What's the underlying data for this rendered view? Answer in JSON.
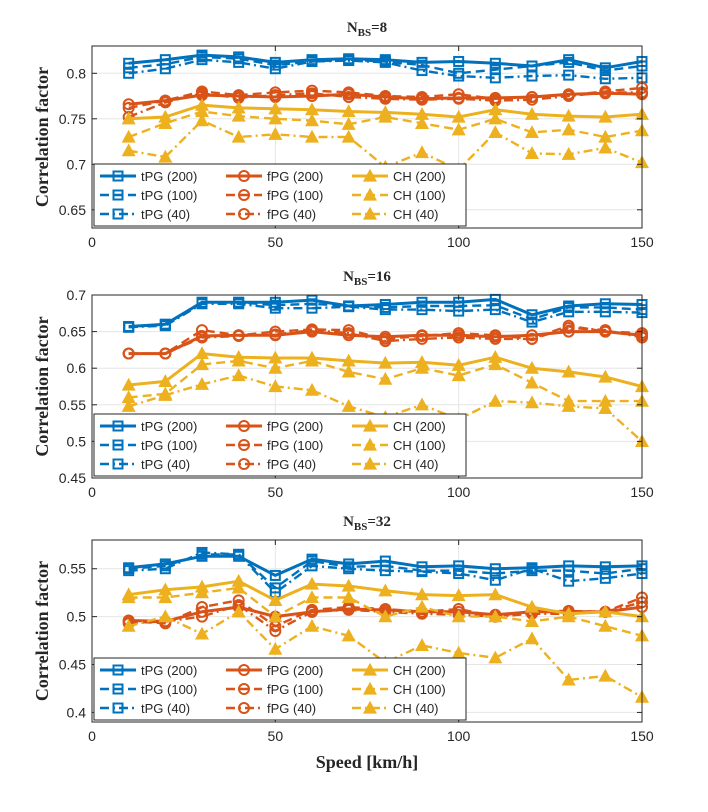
{
  "figure": {
    "xlabel": "Speed [km/h]"
  },
  "colors": {
    "tPG": "#0072BD",
    "fPG": "#D95319",
    "CH": "#EDB120",
    "grid": "#e6e6e6",
    "axis": "#262626"
  },
  "chart_data": [
    {
      "type": "line",
      "title_main": "N",
      "title_sub": "BS",
      "title_suffix": "=8",
      "ylabel": "Correlation factor",
      "xlim": [
        0,
        150
      ],
      "ylim": [
        0.63,
        0.83
      ],
      "xticks": [
        "0",
        "50",
        "100",
        "150"
      ],
      "yticks": [
        "0.65",
        "0.7",
        "0.75",
        "0.8"
      ],
      "ytick_values": [
        0.65,
        0.7,
        0.75,
        0.8
      ],
      "grid": true,
      "legend_position": "bottom-left",
      "x": [
        10,
        20,
        30,
        40,
        50,
        60,
        70,
        80,
        90,
        100,
        110,
        120,
        130,
        140,
        150
      ],
      "series": [
        {
          "name": "tPG (200)",
          "color_key": "tPG",
          "marker": "square",
          "dash": "solid",
          "values": [
            0.811,
            0.815,
            0.82,
            0.818,
            0.812,
            0.815,
            0.816,
            0.815,
            0.812,
            0.813,
            0.811,
            0.808,
            0.815,
            0.806,
            0.813
          ]
        },
        {
          "name": "tPG (100)",
          "color_key": "tPG",
          "marker": "square",
          "dash": "dash",
          "values": [
            0.806,
            0.81,
            0.818,
            0.816,
            0.809,
            0.813,
            0.815,
            0.813,
            0.809,
            0.8,
            0.804,
            0.808,
            0.812,
            0.803,
            0.808
          ]
        },
        {
          "name": "tPG (40)",
          "color_key": "tPG",
          "marker": "square",
          "dash": "dashdot",
          "values": [
            0.8,
            0.805,
            0.815,
            0.812,
            0.805,
            0.813,
            0.814,
            0.812,
            0.803,
            0.797,
            0.795,
            0.797,
            0.798,
            0.794,
            0.795
          ]
        },
        {
          "name": "fPG (200)",
          "color_key": "fPG",
          "marker": "circle",
          "dash": "solid",
          "values": [
            0.766,
            0.77,
            0.776,
            0.775,
            0.774,
            0.775,
            0.777,
            0.774,
            0.772,
            0.773,
            0.773,
            0.774,
            0.777,
            0.778,
            0.777
          ]
        },
        {
          "name": "fPG (100)",
          "color_key": "fPG",
          "marker": "circle",
          "dash": "dash",
          "values": [
            0.762,
            0.77,
            0.78,
            0.776,
            0.779,
            0.781,
            0.779,
            0.775,
            0.774,
            0.777,
            0.772,
            0.774,
            0.776,
            0.78,
            0.784
          ]
        },
        {
          "name": "fPG (40)",
          "color_key": "fPG",
          "marker": "circle",
          "dash": "dashdot",
          "values": [
            0.752,
            0.768,
            0.778,
            0.773,
            0.776,
            0.778,
            0.774,
            0.772,
            0.771,
            0.772,
            0.77,
            0.771,
            0.775,
            0.779,
            0.779
          ]
        },
        {
          "name": "CH (200)",
          "color_key": "CH",
          "marker": "triangle",
          "dash": "solid",
          "values": [
            0.75,
            0.752,
            0.765,
            0.762,
            0.761,
            0.76,
            0.758,
            0.757,
            0.755,
            0.752,
            0.76,
            0.755,
            0.753,
            0.752,
            0.755
          ]
        },
        {
          "name": "CH (100)",
          "color_key": "CH",
          "marker": "triangle",
          "dash": "dash",
          "values": [
            0.73,
            0.745,
            0.758,
            0.753,
            0.75,
            0.748,
            0.744,
            0.752,
            0.745,
            0.738,
            0.75,
            0.735,
            0.738,
            0.73,
            0.737
          ]
        },
        {
          "name": "CH (40)",
          "color_key": "CH",
          "marker": "triangle",
          "dash": "dashdot",
          "values": [
            0.715,
            0.708,
            0.748,
            0.73,
            0.733,
            0.73,
            0.73,
            0.697,
            0.713,
            0.694,
            0.735,
            0.712,
            0.711,
            0.718,
            0.702
          ]
        }
      ]
    },
    {
      "type": "line",
      "title_main": "N",
      "title_sub": "BS",
      "title_suffix": "=16",
      "ylabel": "Correlation factor",
      "xlim": [
        0,
        150
      ],
      "ylim": [
        0.45,
        0.7
      ],
      "xticks": [
        "0",
        "50",
        "100",
        "150"
      ],
      "yticks": [
        "0.45",
        "0.5",
        "0.55",
        "0.6",
        "0.65",
        "0.7"
      ],
      "ytick_values": [
        0.45,
        0.5,
        0.55,
        0.6,
        0.65,
        0.7
      ],
      "grid": true,
      "legend_position": "bottom-left",
      "x": [
        10,
        20,
        30,
        40,
        50,
        60,
        70,
        80,
        90,
        100,
        110,
        120,
        130,
        140,
        150
      ],
      "series": [
        {
          "name": "tPG (200)",
          "color_key": "tPG",
          "marker": "square",
          "dash": "solid",
          "values": [
            0.657,
            0.66,
            0.69,
            0.69,
            0.69,
            0.693,
            0.685,
            0.687,
            0.69,
            0.69,
            0.694,
            0.673,
            0.685,
            0.688,
            0.687
          ]
        },
        {
          "name": "tPG (100)",
          "color_key": "tPG",
          "marker": "square",
          "dash": "dash",
          "values": [
            0.656,
            0.66,
            0.69,
            0.69,
            0.686,
            0.688,
            0.685,
            0.683,
            0.685,
            0.685,
            0.686,
            0.667,
            0.683,
            0.683,
            0.68
          ]
        },
        {
          "name": "tPG (40)",
          "color_key": "tPG",
          "marker": "square",
          "dash": "dashdot",
          "values": [
            0.656,
            0.658,
            0.688,
            0.688,
            0.682,
            0.682,
            0.684,
            0.68,
            0.68,
            0.678,
            0.68,
            0.663,
            0.677,
            0.677,
            0.676
          ]
        },
        {
          "name": "fPG (200)",
          "color_key": "fPG",
          "marker": "circle",
          "dash": "solid",
          "values": [
            0.62,
            0.62,
            0.644,
            0.645,
            0.645,
            0.65,
            0.645,
            0.643,
            0.645,
            0.645,
            0.643,
            0.645,
            0.65,
            0.65,
            0.645
          ]
        },
        {
          "name": "fPG (100)",
          "color_key": "fPG",
          "marker": "circle",
          "dash": "dash",
          "values": [
            0.62,
            0.62,
            0.652,
            0.645,
            0.65,
            0.653,
            0.652,
            0.64,
            0.644,
            0.648,
            0.645,
            0.64,
            0.658,
            0.65,
            0.648
          ]
        },
        {
          "name": "fPG (40)",
          "color_key": "fPG",
          "marker": "circle",
          "dash": "dashdot",
          "values": [
            0.62,
            0.62,
            0.642,
            0.644,
            0.646,
            0.652,
            0.648,
            0.637,
            0.64,
            0.642,
            0.64,
            0.64,
            0.655,
            0.652,
            0.642
          ]
        },
        {
          "name": "CH (200)",
          "color_key": "CH",
          "marker": "triangle",
          "dash": "solid",
          "values": [
            0.577,
            0.582,
            0.62,
            0.615,
            0.614,
            0.614,
            0.61,
            0.607,
            0.608,
            0.604,
            0.615,
            0.6,
            0.595,
            0.588,
            0.575
          ]
        },
        {
          "name": "CH (100)",
          "color_key": "CH",
          "marker": "triangle",
          "dash": "dash",
          "values": [
            0.56,
            0.565,
            0.605,
            0.61,
            0.6,
            0.61,
            0.595,
            0.585,
            0.6,
            0.59,
            0.605,
            0.58,
            0.555,
            0.555,
            0.555
          ]
        },
        {
          "name": "CH (40)",
          "color_key": "CH",
          "marker": "triangle",
          "dash": "dashdot",
          "values": [
            0.548,
            0.563,
            0.578,
            0.59,
            0.575,
            0.57,
            0.548,
            0.533,
            0.55,
            0.53,
            0.555,
            0.553,
            0.548,
            0.545,
            0.5
          ]
        }
      ]
    },
    {
      "type": "line",
      "title_main": "N",
      "title_sub": "BS",
      "title_suffix": "=32",
      "ylabel": "Correlation factor",
      "xlim": [
        0,
        150
      ],
      "ylim": [
        0.39,
        0.58
      ],
      "xticks": [
        "0",
        "50",
        "100",
        "150"
      ],
      "yticks": [
        "0.4",
        "0.45",
        "0.5",
        "0.55"
      ],
      "ytick_values": [
        0.4,
        0.45,
        0.5,
        0.55
      ],
      "grid": true,
      "legend_position": "bottom-left",
      "x": [
        10,
        20,
        30,
        40,
        50,
        60,
        70,
        80,
        90,
        100,
        110,
        120,
        130,
        140,
        150
      ],
      "series": [
        {
          "name": "tPG (200)",
          "color_key": "tPG",
          "marker": "square",
          "dash": "solid",
          "values": [
            0.551,
            0.555,
            0.563,
            0.563,
            0.543,
            0.56,
            0.555,
            0.558,
            0.552,
            0.553,
            0.55,
            0.551,
            0.553,
            0.552,
            0.553
          ]
        },
        {
          "name": "tPG (100)",
          "color_key": "tPG",
          "marker": "square",
          "dash": "dash",
          "values": [
            0.55,
            0.553,
            0.565,
            0.565,
            0.53,
            0.558,
            0.552,
            0.553,
            0.548,
            0.548,
            0.545,
            0.548,
            0.548,
            0.545,
            0.55
          ]
        },
        {
          "name": "tPG (40)",
          "color_key": "tPG",
          "marker": "square",
          "dash": "dashdot",
          "values": [
            0.548,
            0.55,
            0.567,
            0.565,
            0.525,
            0.553,
            0.55,
            0.548,
            0.547,
            0.545,
            0.538,
            0.55,
            0.537,
            0.54,
            0.545
          ]
        },
        {
          "name": "fPG (200)",
          "color_key": "fPG",
          "marker": "circle",
          "dash": "solid",
          "values": [
            0.496,
            0.495,
            0.505,
            0.51,
            0.5,
            0.505,
            0.508,
            0.507,
            0.505,
            0.505,
            0.502,
            0.505,
            0.505,
            0.505,
            0.51
          ]
        },
        {
          "name": "fPG (100)",
          "color_key": "fPG",
          "marker": "circle",
          "dash": "dash",
          "values": [
            0.495,
            0.493,
            0.51,
            0.517,
            0.49,
            0.507,
            0.51,
            0.508,
            0.505,
            0.508,
            0.5,
            0.506,
            0.506,
            0.505,
            0.52
          ]
        },
        {
          "name": "fPG (40)",
          "color_key": "fPG",
          "marker": "circle",
          "dash": "dashdot",
          "values": [
            0.493,
            0.495,
            0.5,
            0.512,
            0.485,
            0.505,
            0.507,
            0.505,
            0.503,
            0.502,
            0.5,
            0.503,
            0.503,
            0.505,
            0.515
          ]
        },
        {
          "name": "CH (200)",
          "color_key": "CH",
          "marker": "triangle",
          "dash": "solid",
          "values": [
            0.523,
            0.528,
            0.531,
            0.537,
            0.517,
            0.534,
            0.532,
            0.527,
            0.523,
            0.522,
            0.523,
            0.51,
            0.503,
            0.505,
            0.5
          ]
        },
        {
          "name": "CH (100)",
          "color_key": "CH",
          "marker": "triangle",
          "dash": "dash",
          "values": [
            0.52,
            0.52,
            0.525,
            0.53,
            0.5,
            0.52,
            0.52,
            0.5,
            0.51,
            0.5,
            0.5,
            0.495,
            0.5,
            0.49,
            0.48
          ]
        },
        {
          "name": "CH (40)",
          "color_key": "CH",
          "marker": "triangle",
          "dash": "dashdot",
          "values": [
            0.49,
            0.5,
            0.482,
            0.505,
            0.466,
            0.49,
            0.48,
            0.452,
            0.47,
            0.462,
            0.457,
            0.477,
            0.434,
            0.438,
            0.416
          ]
        }
      ]
    }
  ]
}
